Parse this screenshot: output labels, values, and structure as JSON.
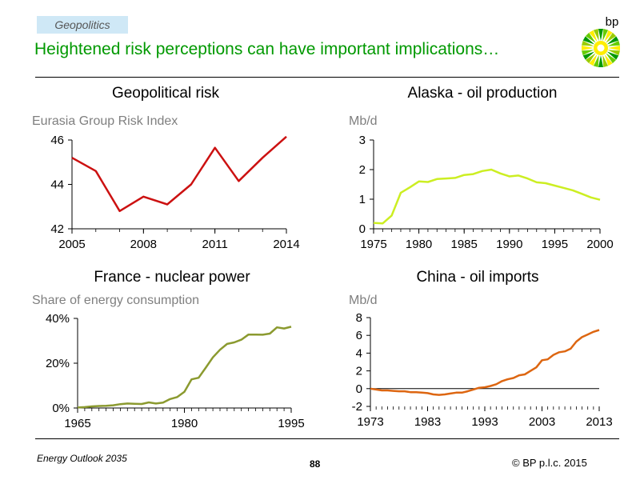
{
  "header": {
    "tag": "Geopolitics",
    "headline": "Heightened risk perceptions can have important implications…",
    "logo_text": "bp"
  },
  "footer": {
    "left": "Energy Outlook 2035",
    "page": "88",
    "copyright": "© BP p.l.c. 2015"
  },
  "colors": {
    "headline": "#009900",
    "tag_bg": "#cfe8f6"
  },
  "chart_data": [
    {
      "type": "line",
      "title": "Geopolitical risk",
      "ylabel": "Eurasia Group Risk Index",
      "color": "#cc1111",
      "xlim": [
        2005,
        2014
      ],
      "ylim": [
        42,
        46
      ],
      "xticks": [
        2005,
        2008,
        2011,
        2014
      ],
      "xtick_labels": [
        "2005",
        "2008",
        "2011",
        "2014"
      ],
      "yticks": [
        42,
        44,
        46
      ],
      "ytick_labels": [
        "42",
        "44",
        "46"
      ],
      "x": [
        2005,
        2006,
        2007,
        2008,
        2009,
        2010,
        2011,
        2012,
        2013,
        2014
      ],
      "y": [
        45.2,
        44.6,
        42.8,
        43.45,
        43.1,
        44.0,
        45.65,
        44.15,
        45.2,
        46.15
      ]
    },
    {
      "type": "line",
      "title": "Alaska - oil production",
      "ylabel": "Mb/d",
      "color": "#ccee22",
      "xlim": [
        1975,
        2000
      ],
      "ylim": [
        0,
        3
      ],
      "xticks": [
        1975,
        1980,
        1985,
        1990,
        1995,
        2000
      ],
      "xtick_labels": [
        "1975",
        "1980",
        "1985",
        "1990",
        "1995",
        "2000"
      ],
      "yticks": [
        0,
        1,
        2,
        3
      ],
      "ytick_labels": [
        "0",
        "1",
        "2",
        "3"
      ],
      "x": [
        1975,
        1976,
        1977,
        1978,
        1979,
        1980,
        1981,
        1982,
        1983,
        1984,
        1985,
        1986,
        1987,
        1988,
        1989,
        1990,
        1991,
        1992,
        1993,
        1994,
        1995,
        1996,
        1997,
        1998,
        1999,
        2000
      ],
      "y": [
        0.2,
        0.18,
        0.45,
        1.22,
        1.4,
        1.6,
        1.58,
        1.68,
        1.7,
        1.72,
        1.82,
        1.85,
        1.95,
        2.0,
        1.87,
        1.77,
        1.8,
        1.7,
        1.57,
        1.54,
        1.46,
        1.38,
        1.3,
        1.18,
        1.06,
        0.98
      ]
    },
    {
      "type": "line",
      "title": "France - nuclear power",
      "ylabel": "Share of energy consumption",
      "color": "#8b9a2f",
      "xlim": [
        1965,
        1995
      ],
      "ylim": [
        0,
        40
      ],
      "xticks": [
        1965,
        1980,
        1995
      ],
      "xtick_labels": [
        "1965",
        "1980",
        "1995"
      ],
      "yticks": [
        0,
        20,
        40
      ],
      "ytick_labels": [
        "0%",
        "20%",
        "40%"
      ],
      "x": [
        1965,
        1966,
        1967,
        1968,
        1969,
        1970,
        1971,
        1972,
        1973,
        1974,
        1975,
        1976,
        1977,
        1978,
        1979,
        1980,
        1981,
        1982,
        1983,
        1984,
        1985,
        1986,
        1987,
        1988,
        1989,
        1990,
        1991,
        1992,
        1993,
        1994,
        1995
      ],
      "y": [
        0.2,
        0.4,
        0.7,
        0.9,
        1.0,
        1.2,
        1.7,
        2.0,
        1.9,
        1.8,
        2.5,
        2.0,
        2.4,
        4.0,
        4.9,
        7.2,
        12.8,
        13.5,
        18.0,
        22.6,
        26.0,
        28.6,
        29.3,
        30.5,
        32.8,
        32.8,
        32.7,
        33.2,
        36.0,
        35.5,
        36.3
      ]
    },
    {
      "type": "line",
      "title": "China - oil imports",
      "ylabel": "Mb/d",
      "color": "#dd6611",
      "xlim": [
        1973,
        2013
      ],
      "ylim": [
        -2,
        8
      ],
      "xticks": [
        1973,
        1983,
        1993,
        2003,
        2013
      ],
      "xtick_labels": [
        "1973",
        "1983",
        "1993",
        "2003",
        "2013"
      ],
      "yticks": [
        -2,
        0,
        2,
        4,
        6,
        8
      ],
      "ytick_labels": [
        "-2",
        "0",
        "2",
        "4",
        "6",
        "8"
      ],
      "x": [
        1973,
        1974,
        1975,
        1976,
        1977,
        1978,
        1979,
        1980,
        1981,
        1982,
        1983,
        1984,
        1985,
        1986,
        1987,
        1988,
        1989,
        1990,
        1991,
        1992,
        1993,
        1994,
        1995,
        1996,
        1997,
        1998,
        1999,
        2000,
        2001,
        2002,
        2003,
        2004,
        2005,
        2006,
        2007,
        2008,
        2009,
        2010,
        2011,
        2012,
        2013
      ],
      "y": [
        0.0,
        -0.1,
        -0.2,
        -0.2,
        -0.25,
        -0.3,
        -0.3,
        -0.4,
        -0.4,
        -0.45,
        -0.5,
        -0.65,
        -0.7,
        -0.65,
        -0.55,
        -0.45,
        -0.45,
        -0.3,
        -0.1,
        0.1,
        0.15,
        0.3,
        0.5,
        0.85,
        1.05,
        1.2,
        1.5,
        1.6,
        2.0,
        2.4,
        3.2,
        3.3,
        3.8,
        4.1,
        4.2,
        4.5,
        5.3,
        5.8,
        6.1,
        6.4,
        6.6
      ]
    }
  ]
}
